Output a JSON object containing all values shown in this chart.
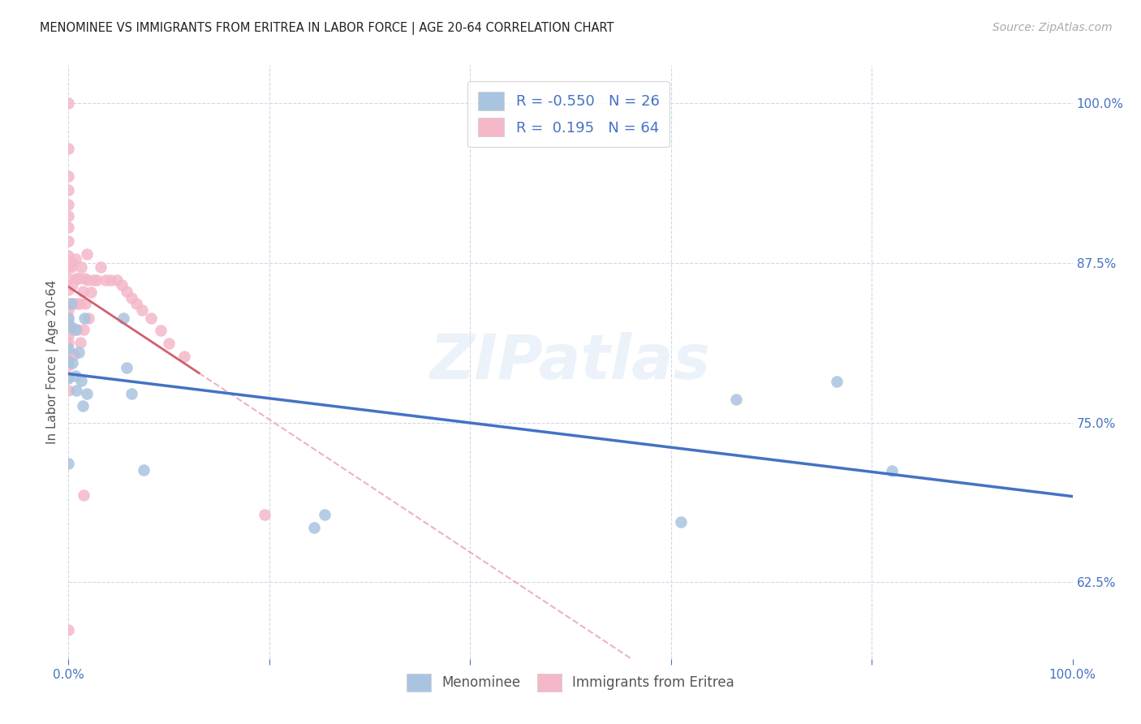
{
  "title": "MENOMINEE VS IMMIGRANTS FROM ERITREA IN LABOR FORCE | AGE 20-64 CORRELATION CHART",
  "source": "Source: ZipAtlas.com",
  "ylabel": "In Labor Force | Age 20-64",
  "xlim": [
    0.0,
    1.0
  ],
  "ylim": [
    0.565,
    1.03
  ],
  "x_ticks": [
    0.0,
    0.2,
    0.4,
    0.6,
    0.8,
    1.0
  ],
  "x_tick_labels": [
    "0.0%",
    "",
    "",
    "",
    "",
    "100.0%"
  ],
  "y_tick_labels": [
    "62.5%",
    "75.0%",
    "87.5%",
    "100.0%"
  ],
  "y_ticks": [
    0.625,
    0.75,
    0.875,
    1.0
  ],
  "watermark": "ZIPatlas",
  "menominee_color": "#a8c4e0",
  "eritrea_color": "#f4b8c8",
  "menominee_line_color": "#4472c4",
  "eritrea_line_color": "#d06070",
  "eritrea_dash_color": "#e8a0b0",
  "R_menominee": -0.55,
  "N_menominee": 26,
  "R_eritrea": 0.195,
  "N_eritrea": 64,
  "menominee_x": [
    0.0,
    0.0,
    0.0,
    0.0,
    0.0,
    0.003,
    0.003,
    0.004,
    0.007,
    0.007,
    0.008,
    0.01,
    0.013,
    0.014,
    0.016,
    0.018,
    0.055,
    0.058,
    0.063,
    0.075,
    0.245,
    0.255,
    0.61,
    0.665,
    0.765,
    0.82
  ],
  "menominee_y": [
    0.832,
    0.808,
    0.798,
    0.785,
    0.718,
    0.843,
    0.825,
    0.797,
    0.823,
    0.787,
    0.775,
    0.805,
    0.783,
    0.763,
    0.832,
    0.773,
    0.832,
    0.793,
    0.773,
    0.713,
    0.668,
    0.678,
    0.672,
    0.768,
    0.782,
    0.712
  ],
  "eritrea_x": [
    0.0,
    0.0,
    0.0,
    0.0,
    0.0,
    0.0,
    0.0,
    0.0,
    0.0,
    0.0,
    0.0,
    0.0,
    0.0,
    0.0,
    0.0,
    0.0,
    0.0,
    0.0,
    0.0,
    0.0,
    0.0,
    0.0,
    0.0,
    0.0,
    0.0,
    0.003,
    0.003,
    0.004,
    0.004,
    0.004,
    0.005,
    0.007,
    0.008,
    0.008,
    0.009,
    0.01,
    0.011,
    0.012,
    0.013,
    0.014,
    0.015,
    0.016,
    0.017,
    0.018,
    0.019,
    0.02,
    0.022,
    0.025,
    0.028,
    0.032,
    0.037,
    0.042,
    0.048,
    0.053,
    0.058,
    0.063,
    0.068,
    0.073,
    0.082,
    0.092,
    0.1,
    0.115,
    0.195,
    0.015
  ],
  "eritrea_y": [
    1.0,
    0.965,
    0.943,
    0.932,
    0.921,
    0.912,
    0.903,
    0.892,
    0.881,
    0.875,
    0.872,
    0.863,
    0.854,
    0.843,
    0.838,
    0.832,
    0.828,
    0.823,
    0.818,
    0.813,
    0.804,
    0.795,
    0.786,
    0.775,
    0.588,
    0.876,
    0.872,
    0.858,
    0.843,
    0.823,
    0.803,
    0.878,
    0.863,
    0.843,
    0.823,
    0.863,
    0.843,
    0.813,
    0.872,
    0.853,
    0.823,
    0.863,
    0.843,
    0.882,
    0.862,
    0.832,
    0.852,
    0.862,
    0.862,
    0.872,
    0.862,
    0.862,
    0.862,
    0.858,
    0.853,
    0.848,
    0.843,
    0.838,
    0.832,
    0.822,
    0.812,
    0.802,
    0.678,
    0.693
  ]
}
